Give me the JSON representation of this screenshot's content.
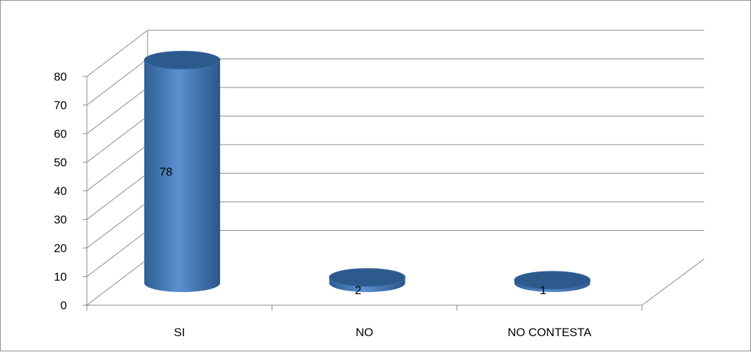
{
  "chart_data": {
    "type": "bar",
    "style": "3d-cylinder",
    "categories": [
      "SI",
      "NO",
      "NO CONTESTA"
    ],
    "values": [
      78,
      2,
      1
    ],
    "data_labels": [
      "78",
      "2",
      "1"
    ],
    "ylim": [
      0,
      80
    ],
    "yticks": [
      "0",
      "10",
      "20",
      "30",
      "40",
      "50",
      "60",
      "70",
      "80"
    ],
    "grid": true,
    "legend": "none",
    "colors": {
      "bar": "#4f81bd",
      "bar_dark": "#2d5a8c",
      "grid": "#868686"
    }
  }
}
